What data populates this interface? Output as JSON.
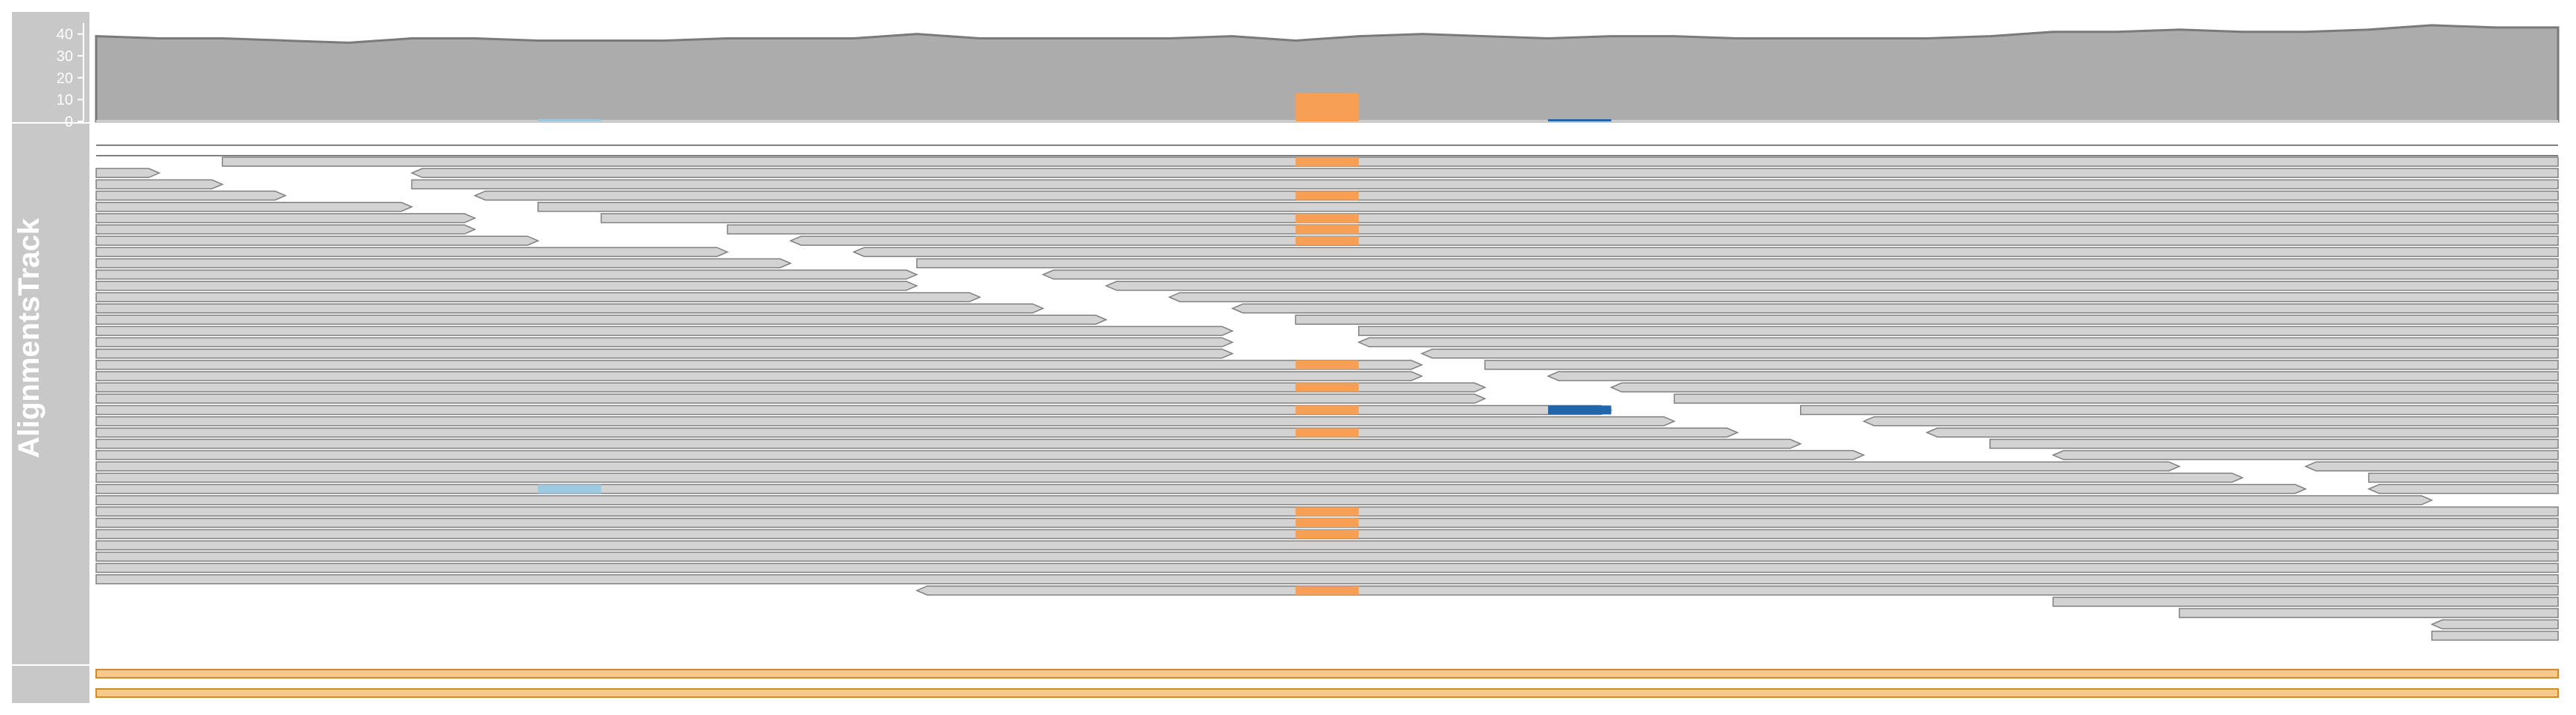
{
  "chart_data": {
    "type": "alignment-track",
    "title": "AlignmentsTrack",
    "genome_positions": 39,
    "coverage": {
      "ylim": [
        0,
        45
      ],
      "ticks": [
        "0",
        "10",
        "20",
        "30",
        "40"
      ],
      "depth": [
        39,
        38,
        38,
        37,
        36,
        38,
        38,
        37,
        37,
        37,
        38,
        38,
        38,
        40,
        38,
        38,
        38,
        38,
        39,
        37,
        39,
        40,
        39,
        38,
        39,
        39,
        38,
        38,
        38,
        38,
        39,
        41,
        41,
        42,
        41,
        41,
        42,
        44,
        43,
        43
      ],
      "mismatch_bars": [
        {
          "position": 7,
          "count": 1,
          "allele": "C"
        },
        {
          "position": 19,
          "count": 13,
          "allele": "A"
        },
        {
          "position": 23,
          "count": 1,
          "allele": "G"
        }
      ]
    },
    "allele_colors": {
      "A": "#f79f54",
      "C": "#9ecae1",
      "G": "#2166ac"
    },
    "read_color": "#d3d3d3",
    "read_border": "#808080",
    "reads": [
      {
        "row": 1,
        "start": 2,
        "end": 39,
        "strand": "+"
      },
      {
        "row": 2,
        "start": 0,
        "end": 1,
        "strand": "+"
      },
      {
        "row": 2,
        "start": 5,
        "end": 39,
        "strand": "-"
      },
      {
        "row": 3,
        "start": 0,
        "end": 2,
        "strand": "+"
      },
      {
        "row": 3,
        "start": 5,
        "end": 39,
        "strand": "+"
      },
      {
        "row": 4,
        "start": 0,
        "end": 3,
        "strand": "+"
      },
      {
        "row": 4,
        "start": 6,
        "end": 39,
        "strand": "-"
      },
      {
        "row": 5,
        "start": 0,
        "end": 5,
        "strand": "+"
      },
      {
        "row": 5,
        "start": 7,
        "end": 39,
        "strand": "+"
      },
      {
        "row": 6,
        "start": 0,
        "end": 6,
        "strand": "+"
      },
      {
        "row": 6,
        "start": 8,
        "end": 39,
        "strand": "+"
      },
      {
        "row": 7,
        "start": 0,
        "end": 6,
        "strand": "+"
      },
      {
        "row": 7,
        "start": 10,
        "end": 39,
        "strand": "+"
      },
      {
        "row": 8,
        "start": 0,
        "end": 7,
        "strand": "+"
      },
      {
        "row": 8,
        "start": 11,
        "end": 39,
        "strand": "-"
      },
      {
        "row": 9,
        "start": 0,
        "end": 10,
        "strand": "+"
      },
      {
        "row": 9,
        "start": 12,
        "end": 39,
        "strand": "-"
      },
      {
        "row": 10,
        "start": 0,
        "end": 11,
        "strand": "+"
      },
      {
        "row": 10,
        "start": 13,
        "end": 39,
        "strand": "+"
      },
      {
        "row": 11,
        "start": 0,
        "end": 13,
        "strand": "+"
      },
      {
        "row": 11,
        "start": 15,
        "end": 39,
        "strand": "-"
      },
      {
        "row": 12,
        "start": 0,
        "end": 13,
        "strand": "+"
      },
      {
        "row": 12,
        "start": 16,
        "end": 39,
        "strand": "-"
      },
      {
        "row": 13,
        "start": 0,
        "end": 14,
        "strand": "+"
      },
      {
        "row": 13,
        "start": 17,
        "end": 39,
        "strand": "-"
      },
      {
        "row": 14,
        "start": 0,
        "end": 15,
        "strand": "+"
      },
      {
        "row": 14,
        "start": 18,
        "end": 39,
        "strand": "-"
      },
      {
        "row": 15,
        "start": 0,
        "end": 16,
        "strand": "+"
      },
      {
        "row": 15,
        "start": 19,
        "end": 39,
        "strand": "+"
      },
      {
        "row": 16,
        "start": 0,
        "end": 18,
        "strand": "+"
      },
      {
        "row": 16,
        "start": 20,
        "end": 39,
        "strand": "+"
      },
      {
        "row": 17,
        "start": 0,
        "end": 18,
        "strand": "+"
      },
      {
        "row": 17,
        "start": 20,
        "end": 39,
        "strand": "-"
      },
      {
        "row": 18,
        "start": 0,
        "end": 18,
        "strand": "+"
      },
      {
        "row": 18,
        "start": 21,
        "end": 39,
        "strand": "-"
      },
      {
        "row": 19,
        "start": 0,
        "end": 21,
        "strand": "+"
      },
      {
        "row": 19,
        "start": 22,
        "end": 39,
        "strand": "+"
      },
      {
        "row": 20,
        "start": 0,
        "end": 21,
        "strand": "+"
      },
      {
        "row": 20,
        "start": 23,
        "end": 39,
        "strand": "-"
      },
      {
        "row": 21,
        "start": 0,
        "end": 22,
        "strand": "+"
      },
      {
        "row": 21,
        "start": 24,
        "end": 39,
        "strand": "-"
      },
      {
        "row": 22,
        "start": 0,
        "end": 22,
        "strand": "+"
      },
      {
        "row": 22,
        "start": 25,
        "end": 39,
        "strand": "+"
      },
      {
        "row": 23,
        "start": 0,
        "end": 24,
        "strand": "+"
      },
      {
        "row": 23,
        "start": 27,
        "end": 39,
        "strand": "+"
      },
      {
        "row": 24,
        "start": 0,
        "end": 25,
        "strand": "+"
      },
      {
        "row": 24,
        "start": 28,
        "end": 39,
        "strand": "-"
      },
      {
        "row": 25,
        "start": 0,
        "end": 26,
        "strand": "+"
      },
      {
        "row": 25,
        "start": 29,
        "end": 39,
        "strand": "-"
      },
      {
        "row": 26,
        "start": 0,
        "end": 27,
        "strand": "+"
      },
      {
        "row": 26,
        "start": 30,
        "end": 39,
        "strand": "+"
      },
      {
        "row": 27,
        "start": 0,
        "end": 28,
        "strand": "+"
      },
      {
        "row": 27,
        "start": 31,
        "end": 39,
        "strand": "-"
      },
      {
        "row": 28,
        "start": 0,
        "end": 33,
        "strand": "+"
      },
      {
        "row": 28,
        "start": 35,
        "end": 39,
        "strand": "-"
      },
      {
        "row": 29,
        "start": 0,
        "end": 34,
        "strand": "+"
      },
      {
        "row": 29,
        "start": 36,
        "end": 39,
        "strand": "+"
      },
      {
        "row": 30,
        "start": 0,
        "end": 35,
        "strand": "+"
      },
      {
        "row": 30,
        "start": 36,
        "end": 39,
        "strand": "-"
      },
      {
        "row": 31,
        "start": 0,
        "end": 37,
        "strand": "+"
      },
      {
        "row": 32,
        "start": 0,
        "end": 39,
        "strand": "+"
      },
      {
        "row": 33,
        "start": 0,
        "end": 39,
        "strand": "+"
      },
      {
        "row": 34,
        "start": 0,
        "end": 39,
        "strand": "+"
      },
      {
        "row": 35,
        "start": 0,
        "end": 39,
        "strand": "+"
      },
      {
        "row": 36,
        "start": 0,
        "end": 39,
        "strand": "+"
      },
      {
        "row": 37,
        "start": 0,
        "end": 39,
        "strand": "+"
      },
      {
        "row": 38,
        "start": 0,
        "end": 39,
        "strand": "+"
      },
      {
        "row": 39,
        "start": 13,
        "end": 39,
        "strand": "-"
      },
      {
        "row": 40,
        "start": 31,
        "end": 39,
        "strand": "+"
      },
      {
        "row": 41,
        "start": 33,
        "end": 39,
        "strand": "+"
      },
      {
        "row": 42,
        "start": 37,
        "end": 39,
        "strand": "-"
      },
      {
        "row": 43,
        "start": 37,
        "end": 39,
        "strand": "+"
      }
    ],
    "mismatches": [
      {
        "row": 1,
        "position": 19,
        "allele": "A"
      },
      {
        "row": 4,
        "position": 19,
        "allele": "A"
      },
      {
        "row": 6,
        "position": 19,
        "allele": "A"
      },
      {
        "row": 7,
        "position": 19,
        "allele": "A"
      },
      {
        "row": 8,
        "position": 19,
        "allele": "A"
      },
      {
        "row": 19,
        "position": 19,
        "allele": "A"
      },
      {
        "row": 21,
        "position": 19,
        "allele": "A"
      },
      {
        "row": 23,
        "position": 19,
        "allele": "A"
      },
      {
        "row": 23,
        "position": 23,
        "allele": "G"
      },
      {
        "row": 25,
        "position": 19,
        "allele": "A"
      },
      {
        "row": 30,
        "position": 7,
        "allele": "C"
      },
      {
        "row": 32,
        "position": 19,
        "allele": "A"
      },
      {
        "row": 33,
        "position": 19,
        "allele": "A"
      },
      {
        "row": 34,
        "position": 19,
        "allele": "A"
      },
      {
        "row": 39,
        "position": 19,
        "allele": "A"
      }
    ],
    "bottom_track": {
      "color": "#f7c98a",
      "border": "#d08a30",
      "features": [
        {
          "row": 0,
          "start": 0,
          "end": 39
        },
        {
          "row": 1,
          "start": 0,
          "end": 39
        }
      ]
    }
  }
}
